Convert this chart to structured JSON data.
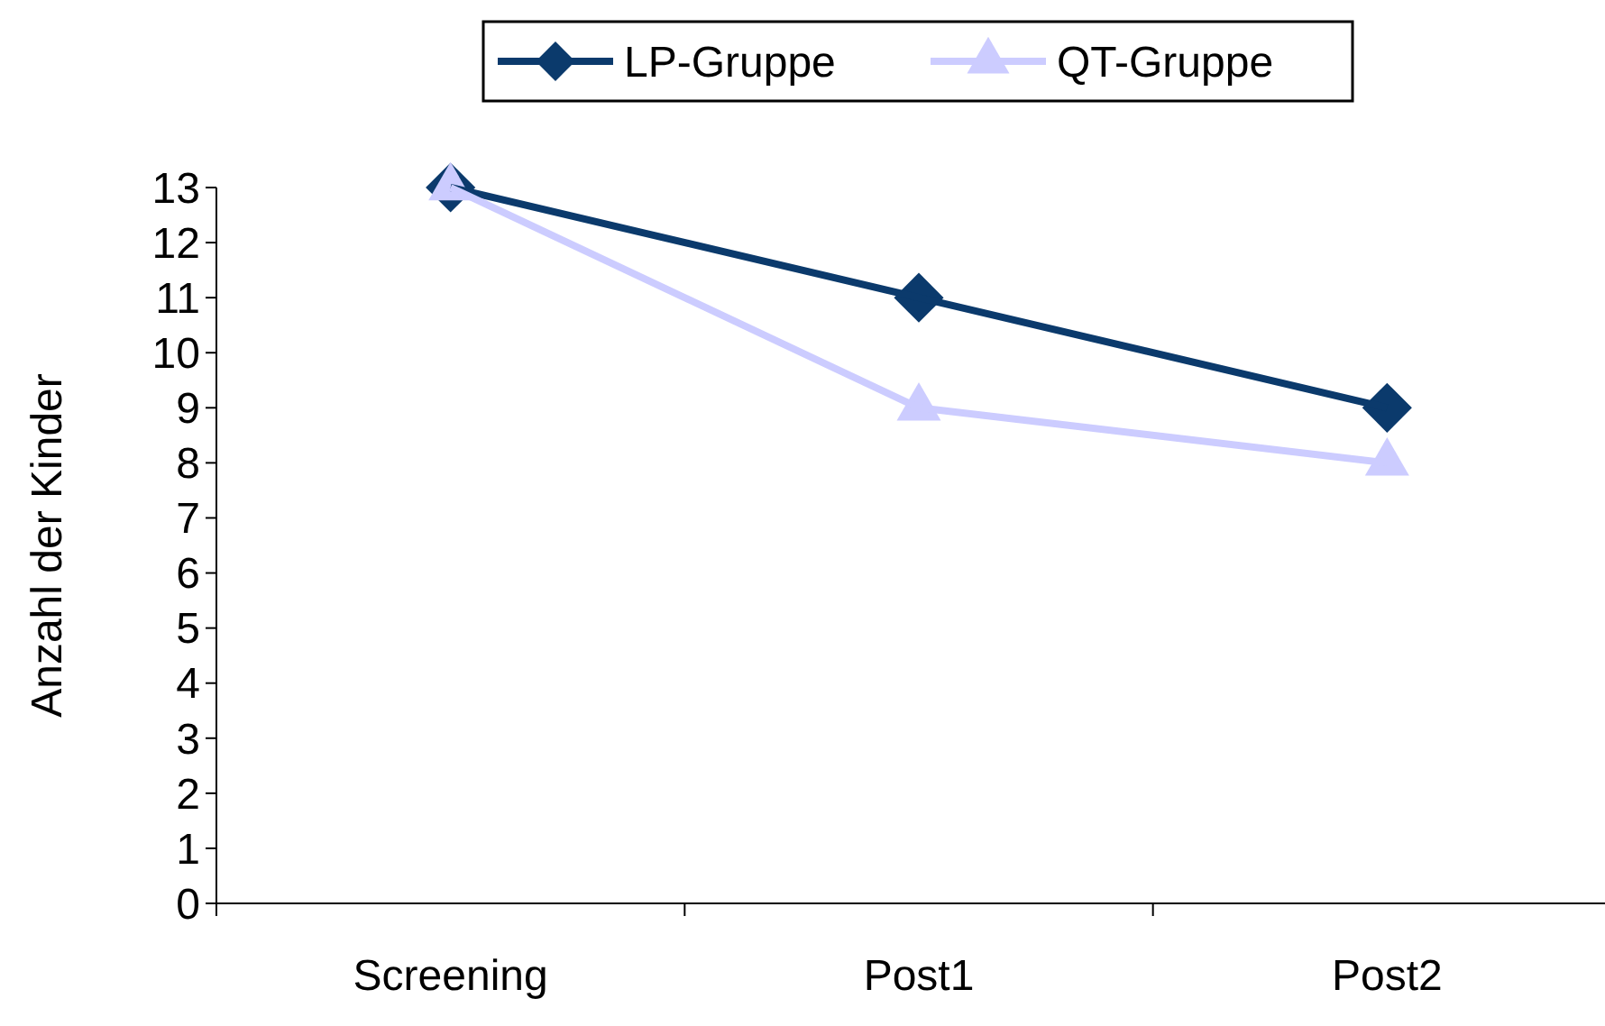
{
  "chart_data": {
    "type": "line",
    "ylabel": "Anzahl der Kinder",
    "categories": [
      "Screening",
      "Post1",
      "Post2"
    ],
    "series": [
      {
        "name": "LP-Gruppe",
        "color": "#0b3a6c",
        "values": [
          13,
          11,
          9
        ],
        "marker": "diamond"
      },
      {
        "name": "QT-Gruppe",
        "color": "#ccccff",
        "values": [
          13,
          9,
          8
        ],
        "marker": "triangle"
      }
    ],
    "ylim": [
      0,
      13
    ],
    "yticks": [
      0,
      1,
      2,
      3,
      4,
      5,
      6,
      7,
      8,
      9,
      10,
      11,
      12,
      13
    ],
    "grid": false,
    "legend": "top",
    "line_style": "solid"
  }
}
